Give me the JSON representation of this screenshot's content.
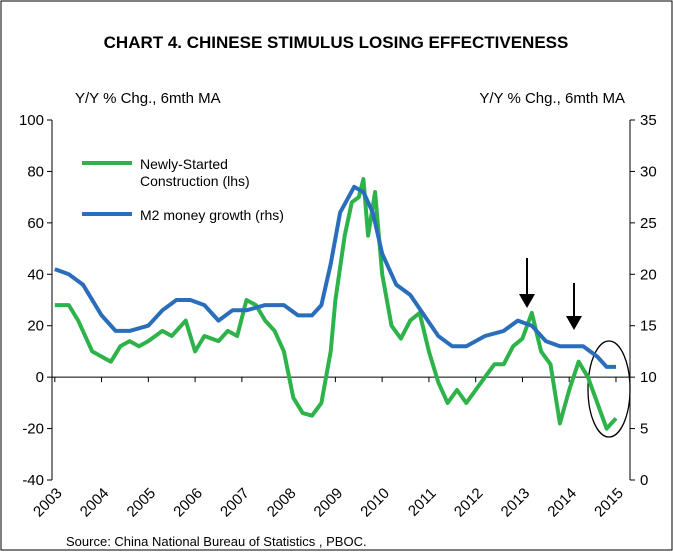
{
  "chart_data": {
    "type": "line",
    "title": "CHART 4. CHINESE STIMULUS LOSING EFFECTIVENESS",
    "y_label": "Y/Y % Chg., 6mth MA",
    "y2_label": "Y/Y % Chg., 6mth MA",
    "source": "Source: China National Bureau of Statistics , PBOC.",
    "xlim": [
      2002.94,
      2015.3
    ],
    "xticks": [
      2003,
      2004,
      2005,
      2006,
      2007,
      2008,
      2009,
      2010,
      2011,
      2012,
      2013,
      2014,
      2015
    ],
    "ylim": [
      -40,
      100
    ],
    "yticks": [
      -40,
      -20,
      0,
      20,
      40,
      60,
      80,
      100
    ],
    "y2lim": [
      0,
      35
    ],
    "y2ticks": [
      0,
      5,
      10,
      15,
      20,
      25,
      30,
      35
    ],
    "legend": "upper left",
    "series": [
      {
        "name": "Newly-Started Construction (lhs)",
        "color": "#2db34a",
        "x": [
          2003.0,
          2003.3,
          2003.5,
          2003.8,
          2004.0,
          2004.2,
          2004.4,
          2004.6,
          2004.8,
          2005.0,
          2005.3,
          2005.5,
          2005.8,
          2006.0,
          2006.2,
          2006.5,
          2006.7,
          2006.9,
          2007.1,
          2007.3,
          2007.5,
          2007.7,
          2007.9,
          2008.1,
          2008.3,
          2008.5,
          2008.7,
          2008.9,
          2009.0,
          2009.2,
          2009.35,
          2009.5,
          2009.6,
          2009.7,
          2009.85,
          2010.0,
          2010.2,
          2010.4,
          2010.6,
          2010.8,
          2011.0,
          2011.2,
          2011.4,
          2011.6,
          2011.8,
          2012.0,
          2012.2,
          2012.4,
          2012.6,
          2012.8,
          2013.0,
          2013.2,
          2013.4,
          2013.6,
          2013.8,
          2014.0,
          2014.2,
          2014.4,
          2014.6,
          2014.8,
          2015.0
        ],
        "values": [
          28,
          28,
          22,
          10,
          8,
          6,
          12,
          14,
          12,
          14,
          18,
          16,
          22,
          10,
          16,
          14,
          18,
          16,
          30,
          28,
          22,
          18,
          10,
          -8,
          -14,
          -15,
          -10,
          10,
          30,
          55,
          68,
          70,
          77,
          55,
          72,
          40,
          20,
          15,
          22,
          25,
          10,
          -2,
          -10,
          -5,
          -10,
          -5,
          0,
          5,
          5,
          12,
          15,
          25,
          10,
          5,
          -18,
          -5,
          6,
          0,
          -10,
          -20,
          -16
        ]
      },
      {
        "name": "M2 money growth (rhs)",
        "color": "#2a6ebb",
        "axis": "y2",
        "x": [
          2003.0,
          2003.3,
          2003.6,
          2004.0,
          2004.3,
          2004.6,
          2005.0,
          2005.3,
          2005.6,
          2005.9,
          2006.2,
          2006.5,
          2006.8,
          2007.1,
          2007.5,
          2007.9,
          2008.2,
          2008.5,
          2008.7,
          2008.9,
          2009.1,
          2009.4,
          2009.6,
          2009.8,
          2010.0,
          2010.3,
          2010.6,
          2010.9,
          2011.2,
          2011.5,
          2011.8,
          2012.2,
          2012.6,
          2012.9,
          2013.2,
          2013.5,
          2013.8,
          2014.0,
          2014.3,
          2014.6,
          2014.8,
          2015.0
        ],
        "values": [
          20.5,
          20,
          19,
          16,
          14.5,
          14.5,
          15,
          16.5,
          17.5,
          17.5,
          17,
          15.5,
          16.5,
          16.5,
          17,
          17,
          16,
          16,
          17,
          21,
          26,
          28.5,
          28,
          26,
          22,
          19,
          18,
          16,
          14,
          13,
          13,
          14,
          14.5,
          15.5,
          15,
          13.5,
          13,
          13,
          13,
          12,
          11,
          11
        ]
      }
    ]
  }
}
